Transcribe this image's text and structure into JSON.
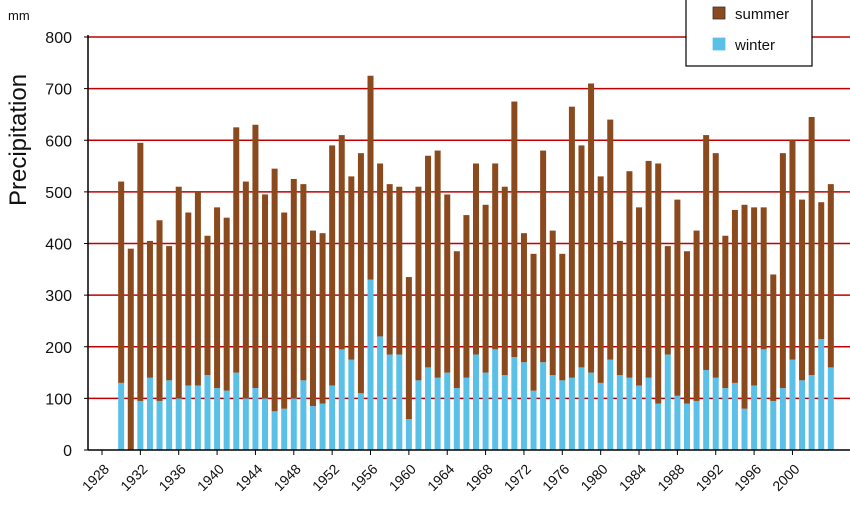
{
  "chart_data": {
    "type": "bar",
    "stacked": true,
    "title": "",
    "xlabel": "",
    "ylabel": "Precipitation",
    "unit": "mm",
    "ylim": [
      0,
      800
    ],
    "yticks": [
      0,
      100,
      200,
      300,
      400,
      500,
      600,
      700,
      800
    ],
    "xtick_labels": [
      "1928",
      "1932",
      "1936",
      "1940",
      "1944",
      "1948",
      "1952",
      "1956",
      "1960",
      "1964",
      "1968",
      "1972",
      "1976",
      "1980",
      "1984",
      "1988",
      "1992",
      "1996",
      "2000"
    ],
    "grid": "horizontal",
    "legend_position": "top-right",
    "colors": {
      "summer": "#8B4A1E",
      "winter": "#5BC0E8",
      "grid": "#C00000"
    },
    "categories": [
      1930,
      1931,
      1932,
      1933,
      1934,
      1935,
      1936,
      1937,
      1938,
      1939,
      1940,
      1941,
      1942,
      1943,
      1944,
      1945,
      1946,
      1947,
      1948,
      1949,
      1950,
      1951,
      1952,
      1953,
      1954,
      1955,
      1956,
      1957,
      1958,
      1959,
      1960,
      1961,
      1962,
      1963,
      1964,
      1965,
      1966,
      1967,
      1968,
      1969,
      1970,
      1971,
      1972,
      1973,
      1974,
      1975,
      1976,
      1977,
      1978,
      1979,
      1980,
      1981,
      1982,
      1983,
      1984,
      1985,
      1986,
      1987,
      1988,
      1989,
      1990,
      1991,
      1992,
      1993,
      1994,
      1995,
      1996,
      1997,
      1998,
      1999,
      2000,
      2001,
      2002,
      2003,
      2004
    ],
    "series": [
      {
        "name": "winter",
        "values": [
          130,
          0,
          95,
          140,
          95,
          135,
          100,
          125,
          125,
          145,
          120,
          115,
          150,
          100,
          120,
          100,
          75,
          80,
          100,
          135,
          85,
          90,
          125,
          195,
          175,
          110,
          330,
          220,
          185,
          185,
          60,
          135,
          160,
          140,
          150,
          120,
          140,
          185,
          150,
          195,
          145,
          180,
          170,
          115,
          170,
          145,
          135,
          140,
          160,
          150,
          130,
          175,
          145,
          140,
          125,
          140,
          90,
          185,
          105,
          90,
          95,
          155,
          140,
          120,
          130,
          80,
          125,
          195,
          95,
          120,
          175,
          135,
          145,
          215,
          160
        ]
      },
      {
        "name": "summer",
        "values": [
          390,
          390,
          500,
          265,
          350,
          260,
          410,
          335,
          375,
          270,
          350,
          335,
          475,
          420,
          510,
          395,
          470,
          380,
          425,
          380,
          340,
          330,
          465,
          415,
          355,
          465,
          395,
          335,
          330,
          325,
          275,
          375,
          410,
          440,
          345,
          265,
          315,
          370,
          325,
          360,
          365,
          495,
          250,
          265,
          410,
          280,
          245,
          525,
          430,
          560,
          400,
          465,
          260,
          400,
          345,
          420,
          465,
          210,
          380,
          295,
          330,
          455,
          435,
          295,
          335,
          395,
          345,
          275,
          245,
          455,
          425,
          350,
          500,
          265,
          355
        ]
      }
    ]
  },
  "legend": {
    "items": [
      "summer",
      "winter"
    ]
  }
}
